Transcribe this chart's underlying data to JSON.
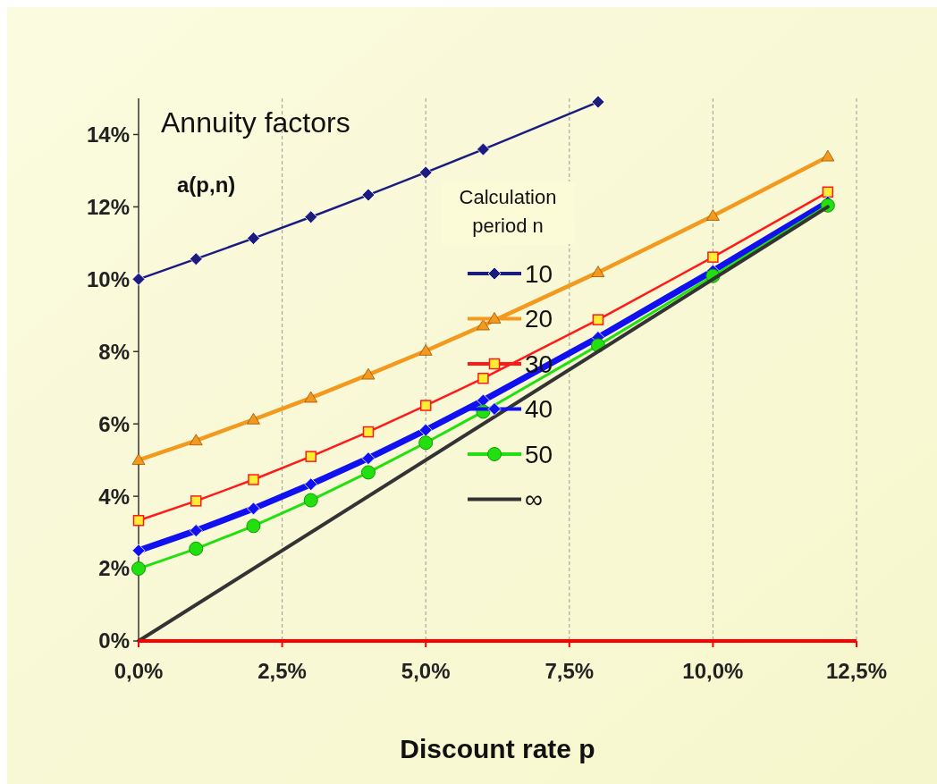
{
  "chart_data": {
    "type": "line",
    "title": "Annuity factors",
    "xlabel": "Discount rate p",
    "legend_title": "Calculation period n",
    "annotations": [
      "a(p,n)"
    ],
    "x": [
      0,
      1,
      2,
      3,
      4,
      5,
      6,
      8,
      10,
      12
    ],
    "xlim": [
      0,
      12.5
    ],
    "xticks": [
      {
        "value": 0,
        "label": "0,0%"
      },
      {
        "value": 2.5,
        "label": "2,5%"
      },
      {
        "value": 5,
        "label": "5,0%"
      },
      {
        "value": 7.5,
        "label": "7,5%"
      },
      {
        "value": 10,
        "label": "10,0%"
      },
      {
        "value": 12.5,
        "label": "12,5%"
      }
    ],
    "ylim": [
      0,
      15
    ],
    "yticks": [
      {
        "value": 0,
        "label": "0%"
      },
      {
        "value": 2,
        "label": "2%"
      },
      {
        "value": 4,
        "label": "4%"
      },
      {
        "value": 6,
        "label": "6%"
      },
      {
        "value": 8,
        "label": "8%"
      },
      {
        "value": 10,
        "label": "10%"
      },
      {
        "value": 12,
        "label": "12%"
      },
      {
        "value": 14,
        "label": "14%"
      }
    ],
    "grid": "x",
    "legend": "center",
    "series": [
      {
        "name": "10",
        "color": "#1c1c80",
        "marker": "diamond",
        "values": [
          10,
          10.56,
          11.13,
          11.72,
          12.33,
          12.95,
          13.59,
          14.9,
          null,
          null
        ]
      },
      {
        "name": "20",
        "color": "#f39a1e",
        "marker": "triangle",
        "values": [
          5,
          5.54,
          6.12,
          6.72,
          7.36,
          8.02,
          8.72,
          10.19,
          11.75,
          13.39
        ]
      },
      {
        "name": "30",
        "color": "#ff1a1a",
        "marker": "square",
        "values": [
          3.33,
          3.87,
          4.46,
          5.1,
          5.78,
          6.51,
          7.26,
          8.88,
          10.61,
          12.41
        ]
      },
      {
        "name": "40",
        "color": "#1010f0",
        "marker": "diamond",
        "values": [
          2.5,
          3.05,
          3.66,
          4.33,
          5.05,
          5.83,
          6.65,
          8.39,
          10.23,
          12.13
        ]
      },
      {
        "name": "50",
        "color": "#22e010",
        "marker": "circle",
        "values": [
          2,
          2.55,
          3.18,
          3.89,
          4.66,
          5.48,
          6.34,
          8.17,
          10.09,
          12.04
        ]
      },
      {
        "name": "∞",
        "color": "#333333",
        "marker": "none",
        "x": [
          0,
          12
        ],
        "values": [
          0,
          12
        ]
      }
    ]
  }
}
